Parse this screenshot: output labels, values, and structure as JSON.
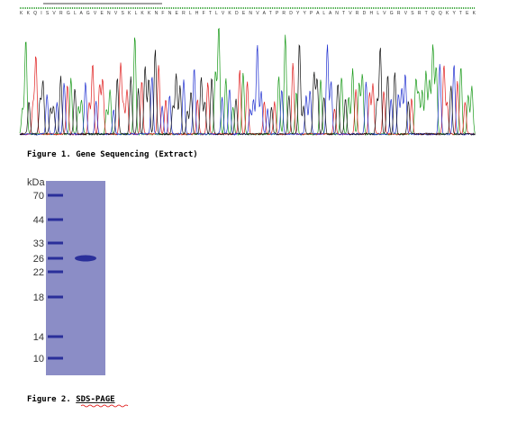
{
  "sequence": "K K Q I S V R G L A G V E N V S K L K K N F N E R L H F T L V K D E N V A T P R D Y Y P A L A N T V R D H L V G R V S R T Q Q K Y T E K",
  "figure1": {
    "label": "Figure 1.",
    "text": "Gene Sequencing (Extract)"
  },
  "gel": {
    "unit": "kDa",
    "markers": [
      "70",
      "44",
      "33",
      "26",
      "22",
      "18",
      "14",
      "10"
    ]
  },
  "figure2": {
    "label": "Figure 2.",
    "text": "SDS-PAGE"
  }
}
